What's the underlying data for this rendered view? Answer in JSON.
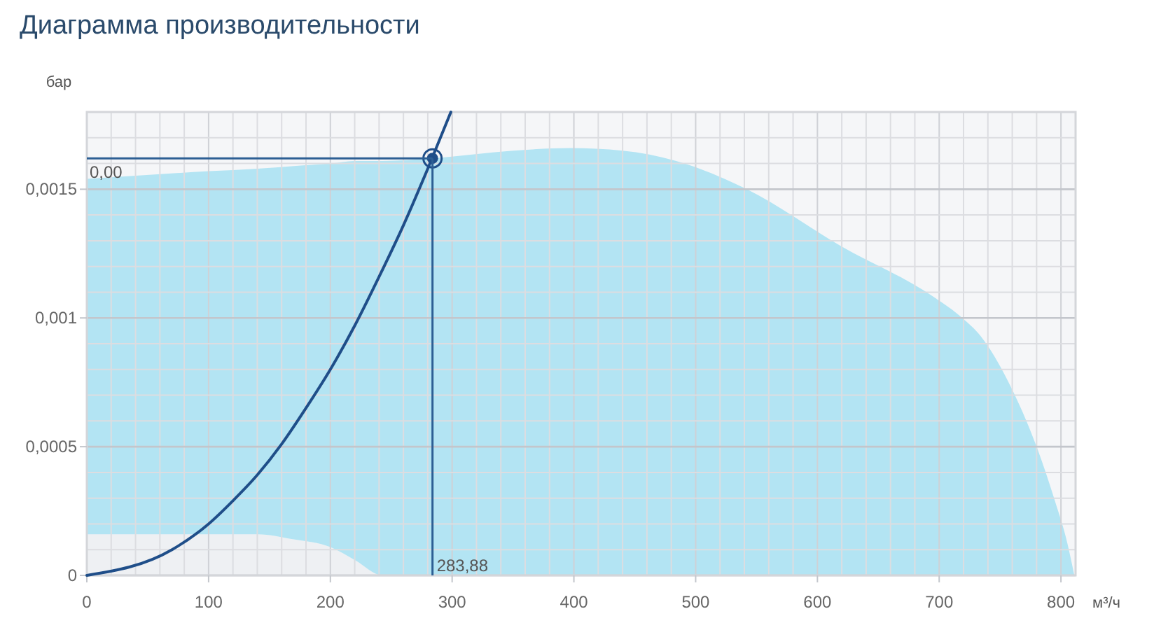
{
  "chart_data": {
    "type": "line",
    "title": "Диаграмма производительности",
    "xlabel": "м³/ч",
    "ylabel": "бар",
    "xlim": [
      0,
      812
    ],
    "ylim": [
      0,
      0.0018
    ],
    "xticks": [
      0,
      {
        "value": 20,
        "label": null
      },
      {
        "value": 40,
        "label": null
      },
      {
        "value": 60,
        "label": null
      },
      {
        "value": 80,
        "label": null
      },
      100,
      {
        "value": 120,
        "label": null
      },
      {
        "value": 140,
        "label": null
      },
      {
        "value": 160,
        "label": null
      },
      {
        "value": 180,
        "label": null
      },
      200,
      {
        "value": 220,
        "label": null
      },
      {
        "value": 240,
        "label": null
      },
      {
        "value": 260,
        "label": null
      },
      {
        "value": 280,
        "label": null
      },
      300,
      {
        "value": 320,
        "label": null
      },
      {
        "value": 340,
        "label": null
      },
      {
        "value": 360,
        "label": null
      },
      {
        "value": 380,
        "label": null
      },
      400,
      {
        "value": 420,
        "label": null
      },
      {
        "value": 440,
        "label": null
      },
      {
        "value": 460,
        "label": null
      },
      {
        "value": 480,
        "label": null
      },
      500,
      {
        "value": 520,
        "label": null
      },
      {
        "value": 540,
        "label": null
      },
      {
        "value": 560,
        "label": null
      },
      {
        "value": 580,
        "label": null
      },
      600,
      {
        "value": 620,
        "label": null
      },
      {
        "value": 640,
        "label": null
      },
      {
        "value": 660,
        "label": null
      },
      {
        "value": 680,
        "label": null
      },
      700,
      {
        "value": 720,
        "label": null
      },
      {
        "value": 740,
        "label": null
      },
      {
        "value": 760,
        "label": null
      },
      {
        "value": 780,
        "label": null
      },
      800
    ],
    "yticks": [
      {
        "value": 0,
        "label": "0"
      },
      {
        "value": 0.0001,
        "label": null
      },
      {
        "value": 0.0002,
        "label": null
      },
      {
        "value": 0.0003,
        "label": null
      },
      {
        "value": 0.0004,
        "label": null
      },
      {
        "value": 0.0005,
        "label": "0,0005"
      },
      {
        "value": 0.0006,
        "label": null
      },
      {
        "value": 0.0007,
        "label": null
      },
      {
        "value": 0.0008,
        "label": null
      },
      {
        "value": 0.0009,
        "label": null
      },
      {
        "value": 0.001,
        "label": "0,001"
      },
      {
        "value": 0.0011,
        "label": null
      },
      {
        "value": 0.0012,
        "label": null
      },
      {
        "value": 0.0013,
        "label": null
      },
      {
        "value": 0.0014,
        "label": null
      },
      {
        "value": 0.0015,
        "label": "0,0015"
      },
      {
        "value": 0.0016,
        "label": null
      },
      {
        "value": 0.0017,
        "label": null
      },
      {
        "value": 0.0018,
        "label": null
      }
    ],
    "grid": true,
    "stacked": true,
    "x": [
      0,
      100,
      140,
      170,
      200,
      220,
      243,
      283,
      350,
      397,
      440,
      484,
      542,
      619,
      696,
      719,
      734,
      757,
      780,
      795,
      805,
      811
    ],
    "series": [
      {
        "type": "area",
        "color": "#eef0f3",
        "values": [
          0.00016,
          0.00016,
          0.00016,
          0.00014,
          0.00011,
          6e-05,
          0,
          null,
          null,
          null,
          null,
          null,
          null,
          null,
          null,
          null,
          null,
          null,
          null,
          null,
          null,
          null
        ]
      },
      {
        "type": "area",
        "color": "#b3e4f3",
        "values": [
          0.00138,
          0.00141,
          0.00142,
          0.00145,
          0.00149,
          0.00155,
          0.00161,
          0.00162,
          0.00165,
          0.00166,
          0.00165,
          0.00161,
          0.0015,
          0.00128,
          0.00108,
          0.001,
          0.00093,
          0.00075,
          0.0005,
          0.00029,
          0.00013,
          0
        ]
      },
      {
        "color": "#1f4e89",
        "marker": "none",
        "line_style": "solid",
        "x": [
          0,
          70,
          100,
          120,
          140,
          160,
          180,
          200,
          220,
          240,
          260,
          280,
          299
        ],
        "values": [
          0,
          0.0001,
          0.0002,
          0.00029,
          0.00039,
          0.00051,
          0.00065,
          0.0008,
          0.00097,
          0.00116,
          0.00136,
          0.00158,
          0.0018
        ]
      },
      {
        "type": "scatter",
        "color": "#1f4e89",
        "marker": "circle",
        "x": [
          283.88
        ],
        "values": [
          0.00162
        ]
      }
    ],
    "ref_lines": [
      {
        "axis": "y",
        "value": 0.00162,
        "label": "0,00",
        "color": "#2d5f94"
      },
      {
        "axis": "x",
        "value": 283.88,
        "label": "283,88",
        "color": "#2d5f94"
      }
    ]
  }
}
